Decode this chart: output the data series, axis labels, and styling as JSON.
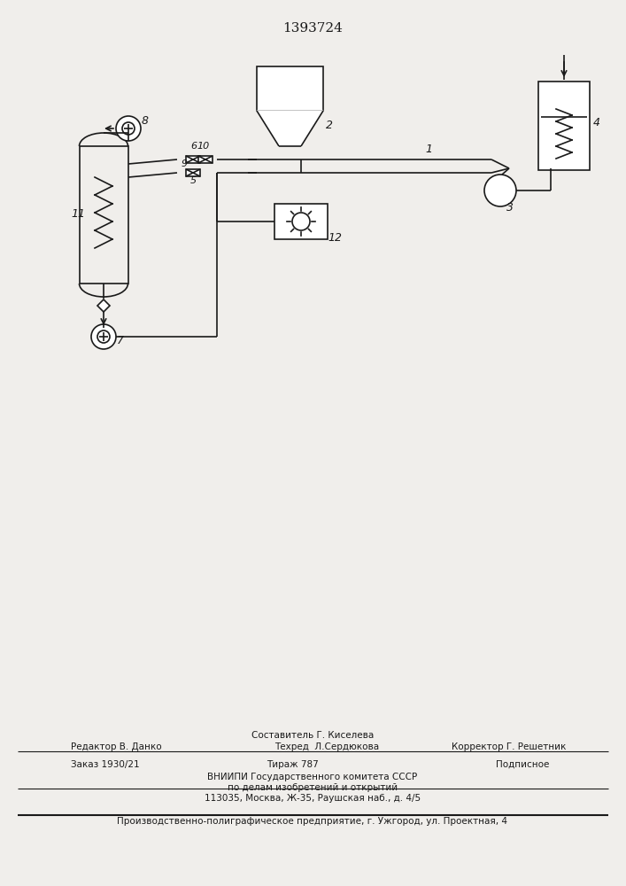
{
  "title": "1393724",
  "title_fontsize": 11,
  "bg_color": "#f0eeeb",
  "line_color": "#1a1a1a",
  "footer_line1_left": "Редактор В. Данко",
  "footer_line1_center_top": "Составитель Г. Киселева",
  "footer_line1_center": "Техред  Л.Сердюкова",
  "footer_line1_right": "Корректор Г. Решетник",
  "footer_line2_left": "Заказ 1930/21",
  "footer_line2_center": "Тираж 787",
  "footer_line2_right": "Подписное",
  "footer_line3": "ВНИИПИ Государственного комитета СССР",
  "footer_line4": "по делам изобретений и открытий",
  "footer_line5": "113035, Москва, Ж-35, Раушская наб., д. 4/5",
  "footer_line6": "Производственно-полиграфическое предприятие, г. Ужгород, ул. Проектная, 4"
}
